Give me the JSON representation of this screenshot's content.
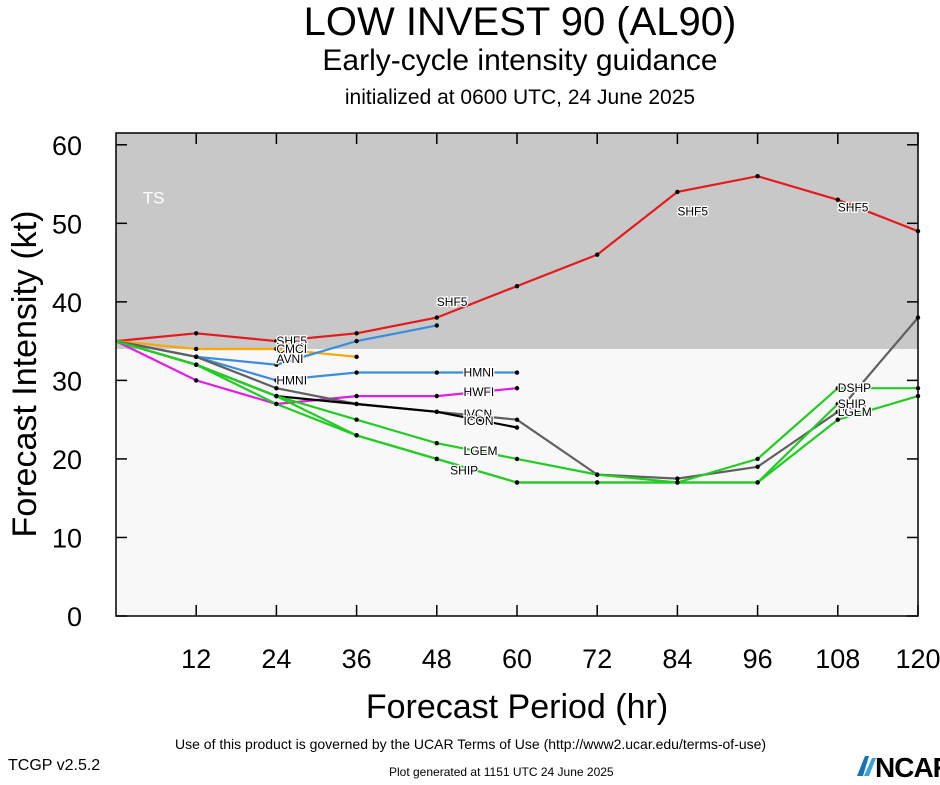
{
  "header": {
    "title": "LOW INVEST 90 (AL90)",
    "subtitle": "Early-cycle intensity guidance",
    "init": "initialized at 0600 UTC, 24 June 2025"
  },
  "footer": {
    "terms": "Use of this product is governed by the UCAR Terms of Use (http://www2.ucar.edu/terms-of-use)",
    "version": "TCGP v2.5.2",
    "generated": "Plot generated at 1151 UTC   24 June 2025",
    "logo": "NCAR"
  },
  "chart_data": {
    "type": "line",
    "xlabel": "Forecast Period (hr)",
    "ylabel": "Forecast Intensity (kt)",
    "xlim": [
      0,
      120
    ],
    "ylim": [
      0,
      61.5
    ],
    "xticks": [
      12,
      24,
      36,
      48,
      60,
      72,
      84,
      96,
      108,
      120
    ],
    "yticks": [
      0,
      10,
      20,
      30,
      40,
      50,
      60
    ],
    "bands": [
      {
        "label": "TS",
        "from": 34,
        "to": 61.5,
        "color": "#c8c8c8"
      },
      {
        "label": "",
        "from": 0,
        "to": 34,
        "color": "#f8f8f8"
      }
    ],
    "series": [
      {
        "name": "SHF5",
        "color": "#e41a1c",
        "points": [
          [
            0,
            35
          ],
          [
            12,
            36
          ],
          [
            24,
            35
          ],
          [
            36,
            36
          ],
          [
            48,
            38
          ],
          [
            60,
            42
          ],
          [
            72,
            46
          ],
          [
            84,
            54
          ],
          [
            96,
            56
          ],
          [
            108,
            53
          ],
          [
            120,
            49
          ]
        ],
        "labels": [
          [
            24,
            35
          ],
          [
            48,
            40
          ],
          [
            84,
            51.5
          ],
          [
            108,
            52
          ]
        ]
      },
      {
        "name": "CMCI",
        "color": "#ffa500",
        "points": [
          [
            0,
            35
          ],
          [
            12,
            34
          ],
          [
            24,
            34
          ],
          [
            36,
            33
          ]
        ],
        "labels": [
          [
            24,
            34
          ]
        ]
      },
      {
        "name": "AVNI",
        "color": "#3a8edc",
        "points": [
          [
            0,
            35
          ],
          [
            12,
            33
          ],
          [
            24,
            32
          ],
          [
            36,
            35
          ],
          [
            48,
            37
          ]
        ],
        "labels": [
          [
            24,
            32.7
          ]
        ]
      },
      {
        "name": "HMNI",
        "color": "#3a8edc",
        "points": [
          [
            0,
            35
          ],
          [
            12,
            33
          ],
          [
            24,
            30
          ],
          [
            36,
            31
          ],
          [
            48,
            31
          ],
          [
            60,
            31
          ]
        ],
        "labels": [
          [
            24,
            30
          ],
          [
            52,
            31
          ]
        ]
      },
      {
        "name": "HWFI",
        "color": "#e21ee2",
        "points": [
          [
            0,
            35
          ],
          [
            12,
            30
          ],
          [
            24,
            27
          ],
          [
            36,
            28
          ],
          [
            48,
            28
          ],
          [
            60,
            29
          ]
        ],
        "labels": [
          [
            52,
            28.5
          ]
        ]
      },
      {
        "name": "IVCN",
        "color": "#606060",
        "points": [
          [
            0,
            35
          ],
          [
            12,
            33
          ],
          [
            24,
            29
          ],
          [
            36,
            27
          ],
          [
            48,
            26
          ],
          [
            60,
            25
          ],
          [
            72,
            18
          ],
          [
            84,
            17.5
          ],
          [
            96,
            19
          ],
          [
            108,
            26
          ],
          [
            120,
            38
          ]
        ],
        "labels": [
          [
            52,
            25.7
          ],
          [
            108,
            26.3
          ]
        ]
      },
      {
        "name": "ICON",
        "color": "#000000",
        "points": [
          [
            0,
            35
          ],
          [
            12,
            32
          ],
          [
            24,
            28
          ],
          [
            36,
            27
          ],
          [
            48,
            26
          ],
          [
            60,
            24
          ]
        ],
        "labels": [
          [
            52,
            24.8
          ]
        ]
      },
      {
        "name": "DSHP",
        "color": "#22cc22",
        "points": [
          [
            0,
            35
          ],
          [
            12,
            32
          ],
          [
            24,
            28
          ],
          [
            36,
            25
          ],
          [
            48,
            22
          ],
          [
            60,
            20
          ],
          [
            72,
            18
          ],
          [
            84,
            17
          ],
          [
            96,
            20
          ],
          [
            108,
            29
          ],
          [
            120,
            29
          ]
        ],
        "labels": [
          [
            108,
            29
          ]
        ]
      },
      {
        "name": "LGEM",
        "color": "#22cc22",
        "points": [
          [
            0,
            35
          ],
          [
            12,
            32
          ],
          [
            24,
            27
          ],
          [
            36,
            23
          ],
          [
            48,
            20
          ],
          [
            60,
            17
          ],
          [
            72,
            17
          ],
          [
            84,
            17
          ],
          [
            96,
            17
          ],
          [
            108,
            25
          ],
          [
            120,
            28
          ]
        ],
        "labels": [
          [
            52,
            21
          ],
          [
            108,
            26
          ]
        ]
      },
      {
        "name": "SHIP",
        "color": "#22cc22",
        "points": [
          [
            0,
            35
          ],
          [
            12,
            32
          ],
          [
            24,
            28
          ],
          [
            36,
            23
          ],
          [
            48,
            20
          ],
          [
            60,
            17
          ],
          [
            72,
            17
          ],
          [
            84,
            17
          ],
          [
            96,
            17
          ],
          [
            108,
            27
          ]
        ],
        "labels": [
          [
            50,
            18.5
          ],
          [
            108,
            27
          ]
        ]
      }
    ]
  }
}
